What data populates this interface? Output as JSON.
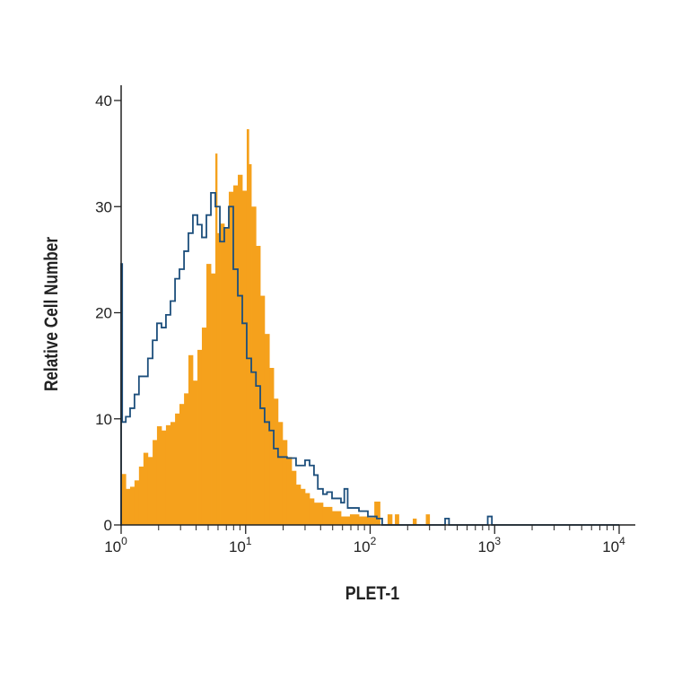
{
  "chart_data": {
    "type": "histogram",
    "title": "",
    "xlabel": "PLET-1",
    "ylabel": "Relative Cell Number",
    "xscale": "log",
    "xlim": [
      1,
      10000
    ],
    "ylim": [
      0,
      40
    ],
    "grid": false,
    "y_ticks": [
      "0",
      "10",
      "20",
      "30",
      "40"
    ],
    "x_ticks": [
      {
        "base": "10",
        "exp": "0"
      },
      {
        "base": "10",
        "exp": "1"
      },
      {
        "base": "10",
        "exp": "2"
      },
      {
        "base": "10",
        "exp": "3"
      },
      {
        "base": "10",
        "exp": "4"
      }
    ],
    "series": [
      {
        "style": "filled",
        "color": "#F5A11C",
        "bins": [
          [
            1.0,
            4.8
          ],
          [
            1.09,
            3.4
          ],
          [
            1.18,
            3.6
          ],
          [
            1.28,
            4.2
          ],
          [
            1.39,
            5.5
          ],
          [
            1.51,
            6.8
          ],
          [
            1.64,
            6.4
          ],
          [
            1.79,
            8.0
          ],
          [
            1.94,
            9.3
          ],
          [
            2.11,
            8.9
          ],
          [
            2.29,
            9.4
          ],
          [
            2.49,
            9.7
          ],
          [
            2.71,
            10.5
          ],
          [
            2.94,
            11.4
          ],
          [
            3.2,
            12.4
          ],
          [
            3.47,
            16.0
          ],
          [
            3.77,
            13.6
          ],
          [
            4.1,
            16.5
          ],
          [
            4.45,
            18.6
          ],
          [
            4.84,
            24.6
          ],
          [
            5.26,
            23.7
          ],
          [
            5.71,
            35.0
          ],
          [
            5.9,
            27.5
          ],
          [
            6.21,
            28.4
          ],
          [
            6.74,
            28.0
          ],
          [
            7.32,
            31.4
          ],
          [
            7.96,
            32.0
          ],
          [
            8.65,
            33.0
          ],
          [
            9.4,
            31.5
          ],
          [
            10.2,
            37.3
          ],
          [
            10.6,
            34.0
          ],
          [
            11.1,
            30.0
          ],
          [
            12.1,
            26.3
          ],
          [
            13.1,
            21.6
          ],
          [
            14.2,
            18.0
          ],
          [
            15.5,
            14.8
          ],
          [
            16.8,
            11.9
          ],
          [
            18.2,
            9.7
          ],
          [
            19.8,
            8.0
          ],
          [
            21.5,
            6.4
          ],
          [
            23.4,
            5.1
          ],
          [
            25.4,
            3.8
          ],
          [
            27.6,
            3.4
          ],
          [
            30.0,
            3.0
          ],
          [
            32.6,
            2.5
          ],
          [
            35.4,
            2.1
          ],
          [
            41.8,
            1.7
          ],
          [
            49.4,
            1.3
          ],
          [
            58.3,
            0.8
          ],
          [
            68.8,
            1.0
          ],
          [
            81.3,
            0.8
          ],
          [
            95.9,
            0.7
          ],
          [
            108,
            2.2
          ],
          [
            120,
            0
          ],
          [
            138,
            1.0
          ],
          [
            150,
            0
          ],
          [
            158,
            1.0
          ],
          [
            170,
            0
          ],
          [
            220,
            0.6
          ],
          [
            235,
            0
          ],
          [
            280,
            1.0
          ],
          [
            300,
            0
          ],
          [
            1000,
            0
          ]
        ]
      },
      {
        "style": "outline",
        "color": "#1D4F7C",
        "bins": [
          [
            1.0,
            24.6
          ],
          [
            1.02,
            9.7
          ],
          [
            1.09,
            10.2
          ],
          [
            1.18,
            11.0
          ],
          [
            1.28,
            12.3
          ],
          [
            1.39,
            14.0
          ],
          [
            1.51,
            14.0
          ],
          [
            1.64,
            15.7
          ],
          [
            1.79,
            17.4
          ],
          [
            1.94,
            19.0
          ],
          [
            2.11,
            18.6
          ],
          [
            2.29,
            19.8
          ],
          [
            2.49,
            21.1
          ],
          [
            2.71,
            23.2
          ],
          [
            2.94,
            24.1
          ],
          [
            3.2,
            25.8
          ],
          [
            3.47,
            27.5
          ],
          [
            3.77,
            29.2
          ],
          [
            4.1,
            28.3
          ],
          [
            4.45,
            27.1
          ],
          [
            4.84,
            29.2
          ],
          [
            5.26,
            31.3
          ],
          [
            5.71,
            30.0
          ],
          [
            6.21,
            26.7
          ],
          [
            6.74,
            28.0
          ],
          [
            7.32,
            30.0
          ],
          [
            7.96,
            24.1
          ],
          [
            8.65,
            21.6
          ],
          [
            9.4,
            19.0
          ],
          [
            10.2,
            15.7
          ],
          [
            11.1,
            14.4
          ],
          [
            12.1,
            13.1
          ],
          [
            13.1,
            11.0
          ],
          [
            14.2,
            9.7
          ],
          [
            15.5,
            8.9
          ],
          [
            16.8,
            7.2
          ],
          [
            18.2,
            6.4
          ],
          [
            21.5,
            6.3
          ],
          [
            25.4,
            5.6
          ],
          [
            30.0,
            6.1
          ],
          [
            32.6,
            5.6
          ],
          [
            35.4,
            4.7
          ],
          [
            38.0,
            3.4
          ],
          [
            41.8,
            2.9
          ],
          [
            45.0,
            3.1
          ],
          [
            49.4,
            2.5
          ],
          [
            58.3,
            2.1
          ],
          [
            62.0,
            3.4
          ],
          [
            66.0,
            1.6
          ],
          [
            81.3,
            1.3
          ],
          [
            95.9,
            0.8
          ],
          [
            113,
            0.6
          ],
          [
            125,
            0
          ],
          [
            400,
            0.6
          ],
          [
            430,
            0
          ],
          [
            880,
            0.8
          ],
          [
            950,
            0
          ],
          [
            10000,
            0
          ]
        ]
      }
    ]
  }
}
